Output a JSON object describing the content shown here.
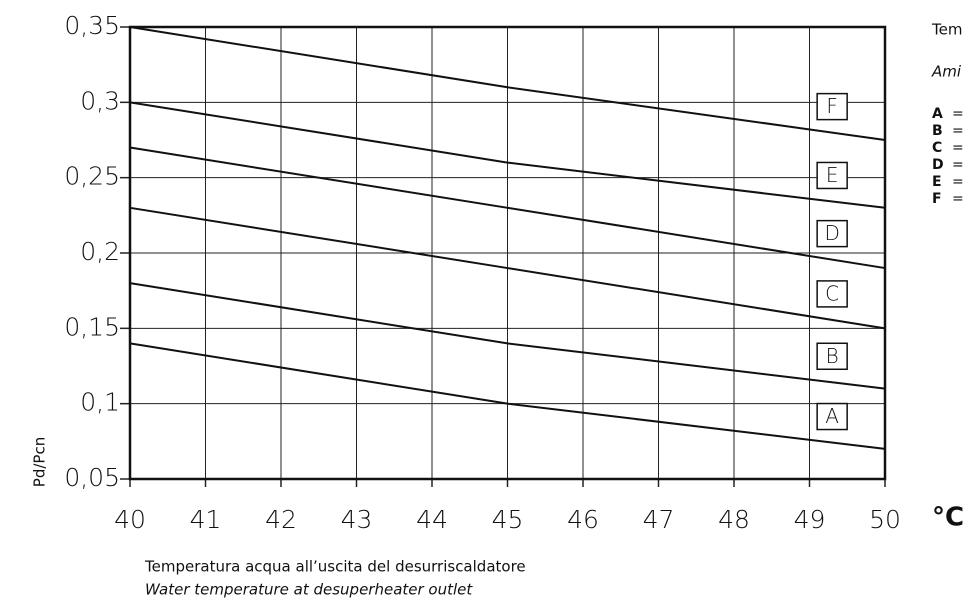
{
  "chart_data": {
    "type": "line",
    "x": [
      40,
      45,
      50
    ],
    "series": [
      {
        "name": "A",
        "color": "#111111",
        "values": [
          0.14,
          0.1,
          0.07
        ]
      },
      {
        "name": "B",
        "color": "#111111",
        "values": [
          0.18,
          0.14,
          0.11
        ]
      },
      {
        "name": "C",
        "color": "#111111",
        "values": [
          0.23,
          0.19,
          0.15
        ]
      },
      {
        "name": "D",
        "color": "#111111",
        "values": [
          0.27,
          0.23,
          0.19
        ]
      },
      {
        "name": "E",
        "color": "#111111",
        "values": [
          0.3,
          0.26,
          0.23
        ]
      },
      {
        "name": "F",
        "color": "#111111",
        "values": [
          0.35,
          0.31,
          0.275
        ]
      }
    ],
    "xlim": [
      40,
      50
    ],
    "xticks": [
      40,
      41,
      42,
      43,
      44,
      45,
      46,
      47,
      48,
      49,
      50
    ],
    "ylim": [
      0.05,
      0.35
    ],
    "yticks": [
      {
        "value": 0.05,
        "label": "0,05"
      },
      {
        "value": 0.1,
        "label": "0,1"
      },
      {
        "value": 0.15,
        "label": "0,15"
      },
      {
        "value": 0.2,
        "label": "0,2"
      },
      {
        "value": 0.25,
        "label": "0,25"
      },
      {
        "value": 0.3,
        "label": "0,3"
      },
      {
        "value": 0.35,
        "label": "0,35"
      }
    ],
    "grid": true,
    "y_label": "Pd/Pcn",
    "x_unit": "°C",
    "x_label": "Temperatura acqua all’uscita del desurriscaldatore",
    "x_label_en": "Water temperature at desuperheater outlet",
    "side_notes": [
      "Tem",
      "Ami"
    ],
    "legend_separator": "="
  }
}
